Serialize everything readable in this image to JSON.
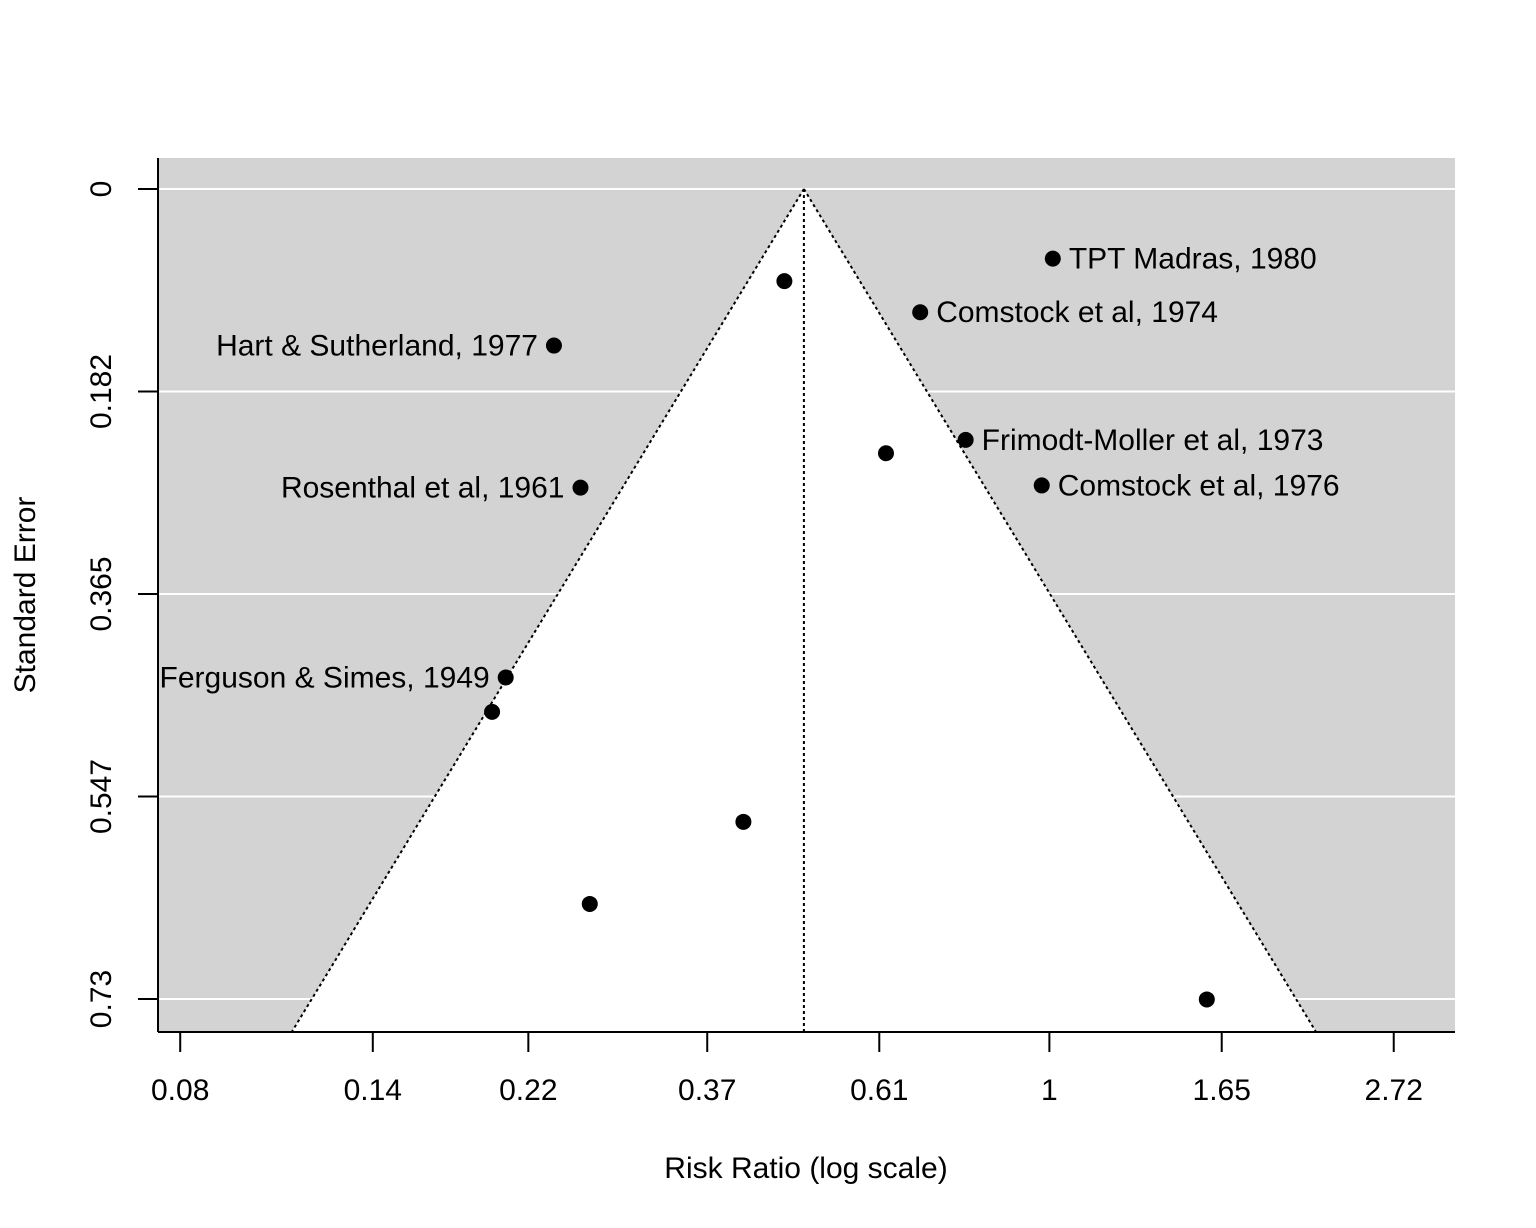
{
  "chart_data": {
    "type": "scatter",
    "subtype": "funnel-plot",
    "title": "",
    "xlabel": "Risk Ratio (log scale)",
    "ylabel": "Standard Error",
    "x_scale": "log",
    "y_reversed": true,
    "xlim": [
      0.075,
      3.25
    ],
    "ylim": [
      0,
      0.7596
    ],
    "x_ticks": [
      {
        "value": 0.08,
        "label": "0.08"
      },
      {
        "value": 0.14,
        "label": "0.14"
      },
      {
        "value": 0.22,
        "label": "0.22"
      },
      {
        "value": 0.37,
        "label": "0.37"
      },
      {
        "value": 0.61,
        "label": "0.61"
      },
      {
        "value": 1.0,
        "label": "1"
      },
      {
        "value": 1.65,
        "label": "1.65"
      },
      {
        "value": 2.72,
        "label": "2.72"
      }
    ],
    "y_ticks": [
      {
        "value": 0,
        "label": "0"
      },
      {
        "value": 0.1824,
        "label": "0.182"
      },
      {
        "value": 0.3648,
        "label": "0.365"
      },
      {
        "value": 0.5472,
        "label": "0.547"
      },
      {
        "value": 0.7296,
        "label": "0.73"
      }
    ],
    "summary_estimate": 0.49,
    "funnel_z": 1.96,
    "grid": true,
    "colors": {
      "background": "#d3d3d3",
      "funnel": "#ffffff",
      "gridline": "#ffffff",
      "point": "#000000",
      "line": "#000000"
    },
    "points": [
      {
        "rr": 0.463,
        "se": 0.083,
        "label": ""
      },
      {
        "rr": 1.01,
        "se": 0.0627,
        "label": "TPT Madras, 1980"
      },
      {
        "rr": 0.687,
        "se": 0.111,
        "label": "Comstock et al, 1974"
      },
      {
        "rr": 0.237,
        "se": 0.141,
        "label": "Hart & Sutherland, 1977"
      },
      {
        "rr": 0.622,
        "se": 0.238,
        "label": ""
      },
      {
        "rr": 0.784,
        "se": 0.226,
        "label": "Frimodt-Moller et al, 1973"
      },
      {
        "rr": 0.978,
        "se": 0.267,
        "label": "Comstock et al, 1976"
      },
      {
        "rr": 0.256,
        "se": 0.269,
        "label": "Rosenthal et al, 1961"
      },
      {
        "rr": 0.206,
        "se": 0.44,
        "label": "Ferguson & Simes, 1949"
      },
      {
        "rr": 0.198,
        "se": 0.471,
        "label": ""
      },
      {
        "rr": 0.411,
        "se": 0.57,
        "label": ""
      },
      {
        "rr": 0.263,
        "se": 0.644,
        "label": ""
      },
      {
        "rr": 1.58,
        "se": 0.73,
        "label": ""
      }
    ]
  }
}
